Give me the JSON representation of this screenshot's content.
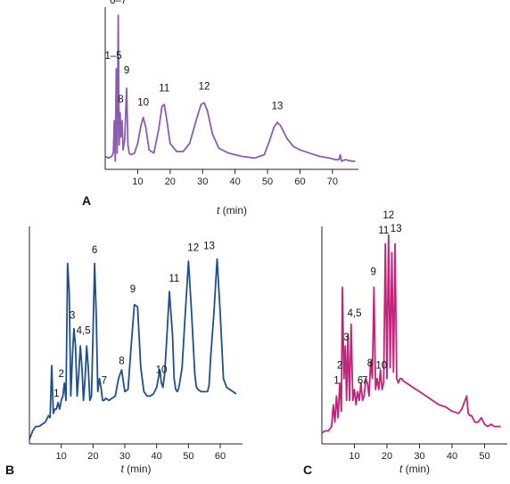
{
  "chart_data": [
    {
      "panel": "A",
      "type": "line",
      "color": "#8e5bb3",
      "xlabel_prefix": "t",
      "xlabel_suffix": " (min)",
      "xlim": [
        0,
        78
      ],
      "xticks": [
        10,
        20,
        30,
        40,
        50,
        60,
        70
      ],
      "ylim": [
        0,
        1
      ],
      "x": [
        0,
        1,
        2,
        2.5,
        2.8,
        3.1,
        3.4,
        3.7,
        4.0,
        4.3,
        4.6,
        4.9,
        5.2,
        5.5,
        6.0,
        6.6,
        7.0,
        7.4,
        8,
        9,
        10,
        11,
        11.7,
        12.5,
        13.5,
        15,
        16.5,
        17.5,
        18.2,
        19,
        20,
        22,
        24,
        26,
        28,
        29.5,
        30.5,
        31.5,
        33,
        35,
        38,
        42,
        46,
        49,
        50.5,
        52,
        53,
        54,
        56,
        58,
        60,
        63,
        66,
        69,
        71,
        72,
        72.4,
        72.8,
        74,
        76,
        77
      ],
      "y": [
        0.08,
        0.07,
        0.08,
        0.1,
        0.3,
        0.05,
        0.62,
        0.1,
        0.95,
        0.15,
        0.35,
        0.2,
        0.3,
        0.12,
        0.18,
        0.5,
        0.15,
        0.1,
        0.09,
        0.1,
        0.16,
        0.27,
        0.32,
        0.26,
        0.12,
        0.1,
        0.25,
        0.39,
        0.4,
        0.3,
        0.16,
        0.11,
        0.11,
        0.16,
        0.3,
        0.4,
        0.41,
        0.36,
        0.22,
        0.13,
        0.1,
        0.08,
        0.07,
        0.09,
        0.17,
        0.26,
        0.29,
        0.27,
        0.19,
        0.14,
        0.12,
        0.1,
        0.08,
        0.07,
        0.06,
        0.06,
        0.09,
        0.05,
        0.06,
        0.05,
        0.05
      ],
      "peaks": [
        {
          "label": "1–5",
          "x": 2.5,
          "y": 0.66
        },
        {
          "label": "6–7",
          "x": 4.0,
          "y": 1.0
        },
        {
          "label": "8",
          "x": 4.8,
          "y": 0.39
        },
        {
          "label": "9",
          "x": 6.6,
          "y": 0.57
        },
        {
          "label": "10",
          "x": 11.7,
          "y": 0.37
        },
        {
          "label": "11",
          "x": 18.2,
          "y": 0.46
        },
        {
          "label": "12",
          "x": 30.5,
          "y": 0.47
        },
        {
          "label": "13",
          "x": 53,
          "y": 0.35
        }
      ]
    },
    {
      "panel": "B",
      "type": "line",
      "color": "#1f4f8c",
      "xlabel_prefix": "t",
      "xlabel_suffix": " (min)",
      "xlim": [
        0,
        67
      ],
      "xticks": [
        10,
        20,
        30,
        40,
        50,
        60
      ],
      "ylim": [
        0,
        1
      ],
      "x": [
        0,
        1,
        2,
        3,
        4,
        5,
        6,
        6.5,
        7,
        7.5,
        8,
        8.5,
        9,
        9.5,
        10,
        10.5,
        11,
        11.5,
        12,
        12.5,
        13,
        13.5,
        14,
        14.5,
        15,
        15.5,
        16,
        16.5,
        17,
        17.5,
        18,
        18.5,
        19,
        19.5,
        20,
        20.5,
        21,
        21.5,
        22,
        22.5,
        23,
        23.5,
        24,
        25,
        26,
        27,
        28,
        29,
        30,
        31,
        32,
        33,
        34,
        35,
        36,
        37,
        38,
        39,
        40,
        41,
        41.5,
        42,
        42.5,
        43,
        44,
        45,
        45.5,
        46,
        46.5,
        47,
        48,
        49,
        50,
        51,
        52,
        52.5,
        53,
        54,
        55,
        56,
        56.5,
        57,
        58,
        59,
        60,
        61,
        62,
        63,
        64,
        65
      ],
      "y": [
        0.02,
        0.06,
        0.08,
        0.08,
        0.09,
        0.1,
        0.13,
        0.12,
        0.36,
        0.14,
        0.16,
        0.16,
        0.19,
        0.16,
        0.2,
        0.22,
        0.28,
        0.2,
        0.83,
        0.7,
        0.22,
        0.4,
        0.53,
        0.45,
        0.22,
        0.32,
        0.45,
        0.35,
        0.2,
        0.3,
        0.45,
        0.35,
        0.2,
        0.22,
        0.5,
        0.83,
        0.6,
        0.24,
        0.3,
        0.26,
        0.2,
        0.2,
        0.21,
        0.2,
        0.21,
        0.22,
        0.3,
        0.34,
        0.24,
        0.25,
        0.45,
        0.64,
        0.63,
        0.35,
        0.24,
        0.22,
        0.22,
        0.23,
        0.26,
        0.34,
        0.28,
        0.26,
        0.32,
        0.44,
        0.7,
        0.5,
        0.3,
        0.25,
        0.24,
        0.26,
        0.35,
        0.6,
        0.84,
        0.6,
        0.32,
        0.26,
        0.25,
        0.24,
        0.24,
        0.24,
        0.27,
        0.4,
        0.6,
        0.85,
        0.6,
        0.3,
        0.26,
        0.25,
        0.24,
        0.23
      ],
      "peaks": [
        {
          "label": "1",
          "x": 8.5,
          "y": 0.2
        },
        {
          "label": "2",
          "x": 10.0,
          "y": 0.29
        },
        {
          "label": "3",
          "x": 13.5,
          "y": 0.56
        },
        {
          "label": "4,5",
          "x": 17.0,
          "y": 0.49
        },
        {
          "label": "6",
          "x": 20.5,
          "y": 0.86
        },
        {
          "label": "7",
          "x": 23.5,
          "y": 0.26
        },
        {
          "label": "8",
          "x": 29.0,
          "y": 0.35
        },
        {
          "label": "9",
          "x": 32.5,
          "y": 0.68
        },
        {
          "label": "10",
          "x": 41.5,
          "y": 0.31
        },
        {
          "label": "11",
          "x": 45.5,
          "y": 0.73
        },
        {
          "label": "12",
          "x": 51.5,
          "y": 0.87
        },
        {
          "label": "13",
          "x": 56.5,
          "y": 0.88
        }
      ]
    },
    {
      "panel": "C",
      "type": "line",
      "color": "#c0257a",
      "xlabel_prefix": "t",
      "xlabel_suffix": " (min)",
      "xlim": [
        0,
        57
      ],
      "xticks": [
        10,
        20,
        30,
        40,
        50
      ],
      "ylim": [
        0,
        1
      ],
      "x": [
        0,
        1,
        2,
        3,
        3.5,
        4,
        4.5,
        5,
        5.5,
        6,
        6.3,
        6.8,
        7.2,
        7.6,
        8,
        8.5,
        9,
        9.5,
        10,
        10.5,
        11,
        11.5,
        12,
        12.5,
        13,
        13.5,
        14,
        14.5,
        15,
        15.5,
        16,
        16.5,
        17,
        17.5,
        18,
        18.5,
        19,
        19.5,
        20,
        20.5,
        21,
        21.5,
        22,
        22.5,
        23,
        23.5,
        24,
        24.5,
        25,
        26,
        27,
        28,
        30,
        32,
        34,
        36,
        38,
        40,
        42,
        43,
        44,
        44.5,
        45,
        45.5,
        46,
        47,
        48,
        49,
        50,
        51,
        52,
        53,
        54,
        55
      ],
      "y": [
        0.05,
        0.06,
        0.06,
        0.08,
        0.18,
        0.1,
        0.22,
        0.12,
        0.28,
        0.15,
        0.72,
        0.3,
        0.45,
        0.2,
        0.5,
        0.2,
        0.55,
        0.2,
        0.25,
        0.18,
        0.24,
        0.2,
        0.28,
        0.2,
        0.22,
        0.3,
        0.28,
        0.22,
        0.38,
        0.3,
        0.72,
        0.25,
        0.3,
        0.25,
        0.34,
        0.25,
        0.28,
        0.92,
        0.3,
        0.96,
        0.35,
        0.88,
        0.33,
        0.92,
        0.3,
        0.28,
        0.3,
        0.3,
        0.29,
        0.28,
        0.27,
        0.26,
        0.24,
        0.22,
        0.2,
        0.18,
        0.17,
        0.15,
        0.14,
        0.16,
        0.2,
        0.22,
        0.14,
        0.13,
        0.13,
        0.1,
        0.1,
        0.12,
        0.09,
        0.08,
        0.09,
        0.08,
        0.08,
        0.08
      ],
      "peaks": [
        {
          "label": "1",
          "x": 4.5,
          "y": 0.26
        },
        {
          "label": "2",
          "x": 5.5,
          "y": 0.33
        },
        {
          "label": "3",
          "x": 7.6,
          "y": 0.46
        },
        {
          "label": "4,5",
          "x": 10.0,
          "y": 0.57
        },
        {
          "label": "6",
          "x": 11.8,
          "y": 0.26
        },
        {
          "label": "7",
          "x": 13.2,
          "y": 0.26
        },
        {
          "label": "8",
          "x": 14.8,
          "y": 0.34
        },
        {
          "label": "9",
          "x": 15.8,
          "y": 0.76
        },
        {
          "label": "10",
          "x": 18.3,
          "y": 0.33
        },
        {
          "label": "11",
          "x": 19.0,
          "y": 0.95
        },
        {
          "label": "12",
          "x": 20.5,
          "y": 1.02
        },
        {
          "label": "13",
          "x": 22.8,
          "y": 0.96
        }
      ]
    }
  ]
}
